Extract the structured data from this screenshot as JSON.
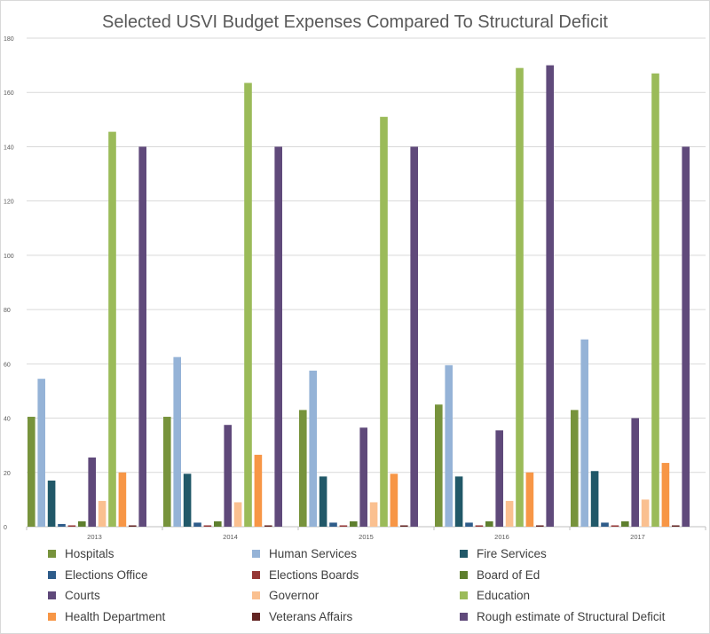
{
  "chart_data": {
    "type": "bar",
    "title": "Selected USVI Budget Expenses Compared To Structural Deficit",
    "xlabel": "",
    "ylabel": "",
    "categories": [
      "2013",
      "2014",
      "2015",
      "2016",
      "2017"
    ],
    "ylim": [
      0,
      180
    ],
    "yticks": [
      0,
      20,
      40,
      60,
      80,
      100,
      120,
      140,
      160,
      180
    ],
    "grid": true,
    "legend_position": "bottom",
    "series": [
      {
        "name": "Hospitals",
        "color": "#77933c",
        "values": [
          40.5,
          40.5,
          43,
          45,
          43
        ]
      },
      {
        "name": "Human Services",
        "color": "#95b3d7",
        "values": [
          54.5,
          62.5,
          57.5,
          59.5,
          69
        ]
      },
      {
        "name": "Fire Services",
        "color": "#215868",
        "values": [
          17,
          19.5,
          18.5,
          18.5,
          20.5
        ]
      },
      {
        "name": "Elections Office",
        "color": "#2e5c8a",
        "values": [
          1,
          1.5,
          1.5,
          1.5,
          1.5
        ]
      },
      {
        "name": "Elections Boards",
        "color": "#953735",
        "values": [
          0.5,
          0.5,
          0.5,
          0.5,
          0.5
        ]
      },
      {
        "name": "Board of Ed",
        "color": "#5e7f2e",
        "values": [
          2,
          2,
          2,
          2,
          2
        ]
      },
      {
        "name": "Courts",
        "color": "#5f497a",
        "values": [
          25.5,
          37.5,
          36.5,
          35.5,
          40
        ]
      },
      {
        "name": "Governor",
        "color": "#fac090",
        "values": [
          9.5,
          9,
          9,
          9.5,
          10
        ]
      },
      {
        "name": "Education",
        "color": "#9bbb59",
        "values": [
          145.5,
          163.5,
          151,
          169,
          167
        ]
      },
      {
        "name": "Health Department",
        "color": "#f79646",
        "values": [
          20,
          26.5,
          19.5,
          20,
          23.5
        ]
      },
      {
        "name": "Veterans Affairs",
        "color": "#632523",
        "values": [
          0.5,
          0.5,
          0.5,
          0.5,
          0.5
        ]
      },
      {
        "name": "Rough estimate of Structural Deficit",
        "color": "#604a7b",
        "values": [
          140,
          140,
          140,
          170,
          140
        ]
      }
    ]
  }
}
